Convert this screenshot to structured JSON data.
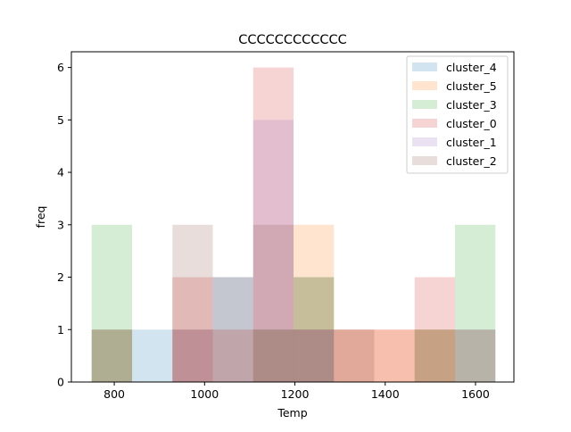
{
  "chart_data": {
    "type": "bar",
    "title": "CCCCCCCCCCCC",
    "xlabel": "Temp",
    "ylabel": "freq",
    "xlim": [
      705,
      1685
    ],
    "ylim": [
      0,
      6.3
    ],
    "xticks": [
      800,
      1000,
      1200,
      1400,
      1600
    ],
    "yticks": [
      0,
      1,
      2,
      3,
      4,
      5,
      6
    ],
    "bin_edges": [
      750,
      839.4,
      928.8,
      1018.2,
      1107.6,
      1197,
      1286.4,
      1375.8,
      1465.2,
      1554.6,
      1644
    ],
    "bar_opacity": 0.2,
    "grid": false,
    "legend_position": "top-right",
    "series": [
      {
        "name": "cluster_4",
        "color": "#1f77b4",
        "values": [
          1,
          1,
          1,
          2,
          1,
          1,
          0,
          0,
          0,
          1
        ]
      },
      {
        "name": "cluster_5",
        "color": "#ff7f0e",
        "values": [
          1,
          0,
          1,
          1,
          1,
          3,
          1,
          1,
          1,
          0
        ]
      },
      {
        "name": "cluster_3",
        "color": "#2ca02c",
        "values": [
          3,
          0,
          0,
          0,
          1,
          2,
          0,
          0,
          1,
          3
        ]
      },
      {
        "name": "cluster_0",
        "color": "#d62728",
        "values": [
          0,
          0,
          2,
          0,
          6,
          1,
          1,
          1,
          2,
          1
        ]
      },
      {
        "name": "cluster_1",
        "color": "#9467bd",
        "values": [
          0,
          0,
          1,
          1,
          5,
          1,
          0,
          0,
          0,
          0
        ]
      },
      {
        "name": "cluster_2",
        "color": "#8c564b",
        "values": [
          1,
          0,
          3,
          2,
          3,
          2,
          1,
          0,
          1,
          0
        ]
      }
    ]
  }
}
